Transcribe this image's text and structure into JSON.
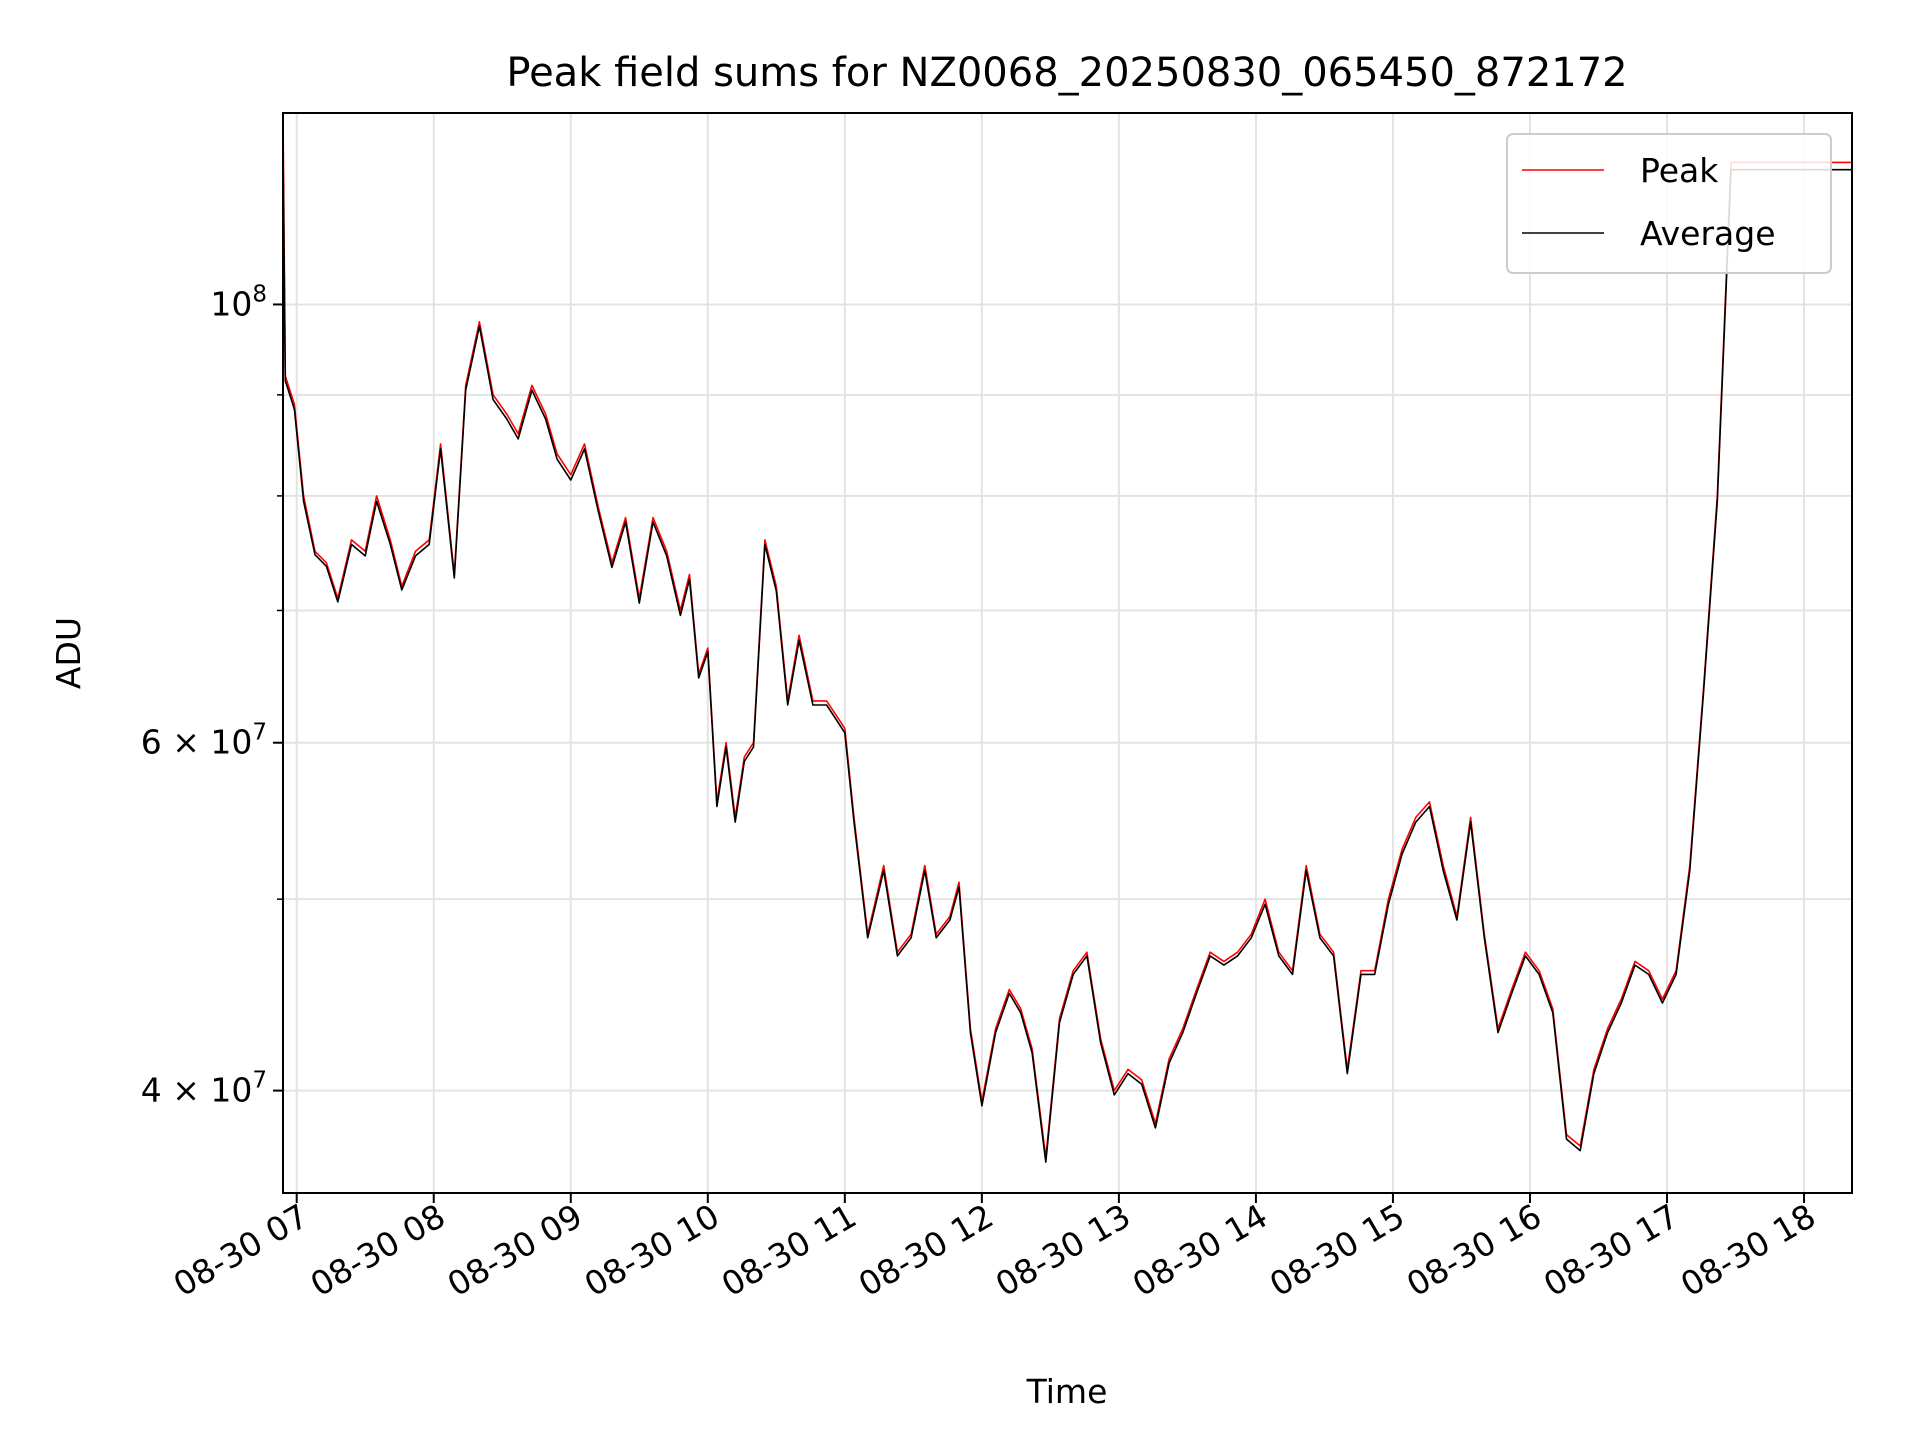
{
  "chart_data": {
    "type": "line",
    "title": "Peak field sums for NZ0068_20250830_065450_872172",
    "xlabel": "Time",
    "ylabel": "ADU",
    "yscale": "log",
    "xlim": [
      "2025-08-30 06:54",
      "2025-08-30 18:21"
    ],
    "ylim": [
      35500000,
      125000000
    ],
    "x_ticks": [
      "08-30 07",
      "08-30 08",
      "08-30 09",
      "08-30 10",
      "08-30 11",
      "08-30 12",
      "08-30 13",
      "08-30 14",
      "08-30 15",
      "08-30 16",
      "08-30 17",
      "08-30 18"
    ],
    "y_tick_labels": [
      {
        "value": 100000000,
        "mantissa": "10",
        "exponent": "8"
      },
      {
        "value": 60000000,
        "mantissa": "6 × 10",
        "exponent": "7"
      },
      {
        "value": 40000000,
        "mantissa": "4 × 10",
        "exponent": "7"
      }
    ],
    "y_minor_ticks": [
      50000000,
      70000000,
      80000000,
      90000000
    ],
    "grid": true,
    "legend_position": "upper right",
    "series": [
      {
        "name": "Peak",
        "color": "#ff0000",
        "x": [
          "2025-08-30 06:54",
          "2025-08-30 06:55",
          "2025-08-30 06:59",
          "2025-08-30 07:03",
          "2025-08-30 07:08",
          "2025-08-30 07:13",
          "2025-08-30 07:18",
          "2025-08-30 07:24",
          "2025-08-30 07:30",
          "2025-08-30 07:35",
          "2025-08-30 07:41",
          "2025-08-30 07:46",
          "2025-08-30 07:52",
          "2025-08-30 07:58",
          "2025-08-30 08:03",
          "2025-08-30 08:09",
          "2025-08-30 08:14",
          "2025-08-30 08:20",
          "2025-08-30 08:26",
          "2025-08-30 08:32",
          "2025-08-30 08:37",
          "2025-08-30 08:43",
          "2025-08-30 08:49",
          "2025-08-30 08:54",
          "2025-08-30 09:00",
          "2025-08-30 09:06",
          "2025-08-30 09:12",
          "2025-08-30 09:18",
          "2025-08-30 09:24",
          "2025-08-30 09:30",
          "2025-08-30 09:36",
          "2025-08-30 09:42",
          "2025-08-30 09:48",
          "2025-08-30 09:52",
          "2025-08-30 09:56",
          "2025-08-30 10:00",
          "2025-08-30 10:04",
          "2025-08-30 10:08",
          "2025-08-30 10:12",
          "2025-08-30 10:16",
          "2025-08-30 10:20",
          "2025-08-30 10:25",
          "2025-08-30 10:30",
          "2025-08-30 10:35",
          "2025-08-30 10:40",
          "2025-08-30 10:46",
          "2025-08-30 10:52",
          "2025-08-30 10:56",
          "2025-08-30 11:00",
          "2025-08-30 11:04",
          "2025-08-30 11:10",
          "2025-08-30 11:17",
          "2025-08-30 11:23",
          "2025-08-30 11:29",
          "2025-08-30 11:35",
          "2025-08-30 11:40",
          "2025-08-30 11:46",
          "2025-08-30 11:50",
          "2025-08-30 11:55",
          "2025-08-30 12:00",
          "2025-08-30 12:06",
          "2025-08-30 12:12",
          "2025-08-30 12:17",
          "2025-08-30 12:22",
          "2025-08-30 12:28",
          "2025-08-30 12:34",
          "2025-08-30 12:40",
          "2025-08-30 12:46",
          "2025-08-30 12:52",
          "2025-08-30 12:58",
          "2025-08-30 13:04",
          "2025-08-30 13:10",
          "2025-08-30 13:16",
          "2025-08-30 13:22",
          "2025-08-30 13:28",
          "2025-08-30 13:34",
          "2025-08-30 13:40",
          "2025-08-30 13:46",
          "2025-08-30 13:52",
          "2025-08-30 13:58",
          "2025-08-30 14:04",
          "2025-08-30 14:10",
          "2025-08-30 14:16",
          "2025-08-30 14:22",
          "2025-08-30 14:28",
          "2025-08-30 14:34",
          "2025-08-30 14:40",
          "2025-08-30 14:46",
          "2025-08-30 14:52",
          "2025-08-30 14:58",
          "2025-08-30 15:04",
          "2025-08-30 15:10",
          "2025-08-30 15:16",
          "2025-08-30 15:22",
          "2025-08-30 15:28",
          "2025-08-30 15:34",
          "2025-08-30 15:40",
          "2025-08-30 15:46",
          "2025-08-30 15:52",
          "2025-08-30 15:58",
          "2025-08-30 16:04",
          "2025-08-30 16:10",
          "2025-08-30 16:16",
          "2025-08-30 16:22",
          "2025-08-30 16:28",
          "2025-08-30 16:34",
          "2025-08-30 16:40",
          "2025-08-30 16:46",
          "2025-08-30 16:52",
          "2025-08-30 16:58",
          "2025-08-30 17:04",
          "2025-08-30 17:10",
          "2025-08-30 17:16",
          "2025-08-30 17:22",
          "2025-08-30 17:28",
          "2025-08-30 17:34",
          "2025-08-30 17:40",
          "2025-08-30 17:46",
          "2025-08-30 17:52",
          "2025-08-30 17:58",
          "2025-08-30 18:04",
          "2025-08-30 18:10",
          "2025-08-30 18:16",
          "2025-08-30 18:21"
        ],
        "values": [
          125000000,
          92000000,
          89000000,
          80000000,
          75000000,
          74000000,
          71000000,
          76000000,
          75000000,
          80000000,
          76000000,
          72000000,
          75000000,
          76000000,
          85000000,
          73000000,
          91000000,
          98000000,
          90000000,
          88000000,
          86000000,
          91000000,
          88000000,
          84000000,
          82000000,
          85000000,
          79000000,
          74000000,
          78000000,
          71000000,
          78000000,
          75000000,
          70000000,
          73000000,
          65000000,
          67000000,
          56000000,
          60000000,
          55000000,
          59000000,
          60000000,
          76000000,
          72000000,
          63000000,
          68000000,
          63000000,
          63000000,
          62000000,
          61000000,
          55000000,
          48000000,
          52000000,
          47000000,
          48000000,
          52000000,
          48000000,
          49000000,
          51000000,
          43000000,
          39500000,
          43000000,
          45000000,
          44000000,
          42000000,
          37000000,
          43500000,
          46000000,
          47000000,
          42500000,
          40000000,
          41000000,
          40500000,
          38500000,
          41500000,
          43000000,
          45000000,
          47000000,
          46500000,
          47000000,
          48000000,
          50000000,
          47000000,
          46000000,
          52000000,
          48000000,
          47000000,
          41000000,
          46000000,
          46000000,
          50000000,
          53000000,
          55000000,
          56000000,
          52000000,
          49000000,
          55000000,
          48000000,
          43000000,
          45000000,
          47000000,
          46000000,
          44000000,
          38000000,
          37500000,
          41000000,
          43000000,
          44500000,
          46500000,
          46000000,
          44500000,
          46000000,
          52000000,
          64000000,
          80000000,
          118000000,
          118000000,
          118000000,
          118000000,
          118000000,
          118000000,
          118000000,
          118000000,
          118000000,
          118000000
        ]
      },
      {
        "name": "Average",
        "color": "#000000",
        "x": [
          "2025-08-30 06:54",
          "2025-08-30 06:55",
          "2025-08-30 06:59",
          "2025-08-30 07:03",
          "2025-08-30 07:08",
          "2025-08-30 07:13",
          "2025-08-30 07:18",
          "2025-08-30 07:24",
          "2025-08-30 07:30",
          "2025-08-30 07:35",
          "2025-08-30 07:41",
          "2025-08-30 07:46",
          "2025-08-30 07:52",
          "2025-08-30 07:58",
          "2025-08-30 08:03",
          "2025-08-30 08:09",
          "2025-08-30 08:14",
          "2025-08-30 08:20",
          "2025-08-30 08:26",
          "2025-08-30 08:32",
          "2025-08-30 08:37",
          "2025-08-30 08:43",
          "2025-08-30 08:49",
          "2025-08-30 08:54",
          "2025-08-30 09:00",
          "2025-08-30 09:06",
          "2025-08-30 09:12",
          "2025-08-30 09:18",
          "2025-08-30 09:24",
          "2025-08-30 09:30",
          "2025-08-30 09:36",
          "2025-08-30 09:42",
          "2025-08-30 09:48",
          "2025-08-30 09:52",
          "2025-08-30 09:56",
          "2025-08-30 10:00",
          "2025-08-30 10:04",
          "2025-08-30 10:08",
          "2025-08-30 10:12",
          "2025-08-30 10:16",
          "2025-08-30 10:20",
          "2025-08-30 10:25",
          "2025-08-30 10:30",
          "2025-08-30 10:35",
          "2025-08-30 10:40",
          "2025-08-30 10:46",
          "2025-08-30 10:52",
          "2025-08-30 10:56",
          "2025-08-30 11:00",
          "2025-08-30 11:04",
          "2025-08-30 11:10",
          "2025-08-30 11:17",
          "2025-08-30 11:23",
          "2025-08-30 11:29",
          "2025-08-30 11:35",
          "2025-08-30 11:40",
          "2025-08-30 11:46",
          "2025-08-30 11:50",
          "2025-08-30 11:55",
          "2025-08-30 12:00",
          "2025-08-30 12:06",
          "2025-08-30 12:12",
          "2025-08-30 12:17",
          "2025-08-30 12:22",
          "2025-08-30 12:28",
          "2025-08-30 12:34",
          "2025-08-30 12:40",
          "2025-08-30 12:46",
          "2025-08-30 12:52",
          "2025-08-30 12:58",
          "2025-08-30 13:04",
          "2025-08-30 13:10",
          "2025-08-30 13:16",
          "2025-08-30 13:22",
          "2025-08-30 13:28",
          "2025-08-30 13:34",
          "2025-08-30 13:40",
          "2025-08-30 13:46",
          "2025-08-30 13:52",
          "2025-08-30 13:58",
          "2025-08-30 14:04",
          "2025-08-30 14:10",
          "2025-08-30 14:16",
          "2025-08-30 14:22",
          "2025-08-30 14:28",
          "2025-08-30 14:34",
          "2025-08-30 14:40",
          "2025-08-30 14:46",
          "2025-08-30 14:52",
          "2025-08-30 14:58",
          "2025-08-30 15:04",
          "2025-08-30 15:10",
          "2025-08-30 15:16",
          "2025-08-30 15:22",
          "2025-08-30 15:28",
          "2025-08-30 15:34",
          "2025-08-30 15:40",
          "2025-08-30 15:46",
          "2025-08-30 15:52",
          "2025-08-30 15:58",
          "2025-08-30 16:04",
          "2025-08-30 16:10",
          "2025-08-30 16:16",
          "2025-08-30 16:22",
          "2025-08-30 16:28",
          "2025-08-30 16:34",
          "2025-08-30 16:40",
          "2025-08-30 16:46",
          "2025-08-30 16:52",
          "2025-08-30 16:58",
          "2025-08-30 17:04",
          "2025-08-30 17:10",
          "2025-08-30 17:16",
          "2025-08-30 17:22",
          "2025-08-30 17:28",
          "2025-08-30 17:34",
          "2025-08-30 17:40",
          "2025-08-30 17:46",
          "2025-08-30 17:52",
          "2025-08-30 17:58",
          "2025-08-30 18:04",
          "2025-08-30 18:10",
          "2025-08-30 18:16",
          "2025-08-30 18:21"
        ],
        "values": [
          120000000,
          91500000,
          88500000,
          79500000,
          74700000,
          73700000,
          70700000,
          75600000,
          74600000,
          79500000,
          75600000,
          71700000,
          74600000,
          75600000,
          84500000,
          72700000,
          90500000,
          97500000,
          89500000,
          87500000,
          85500000,
          90500000,
          87500000,
          83500000,
          81500000,
          84500000,
          78600000,
          73600000,
          77600000,
          70600000,
          77600000,
          74600000,
          69600000,
          72600000,
          64700000,
          66700000,
          55700000,
          59700000,
          54700000,
          58700000,
          59700000,
          75600000,
          71600000,
          62700000,
          67600000,
          62700000,
          62700000,
          61700000,
          60700000,
          54700000,
          47800000,
          51700000,
          46800000,
          47800000,
          51700000,
          47800000,
          48800000,
          50700000,
          42800000,
          39300000,
          42800000,
          44800000,
          43800000,
          41800000,
          36800000,
          43300000,
          45800000,
          46800000,
          42300000,
          39800000,
          40800000,
          40300000,
          38300000,
          41300000,
          42800000,
          44800000,
          46800000,
          46300000,
          46800000,
          47800000,
          49700000,
          46800000,
          45800000,
          51700000,
          47800000,
          46800000,
          40800000,
          45800000,
          45800000,
          49700000,
          52700000,
          54700000,
          55700000,
          51700000,
          48800000,
          54700000,
          47800000,
          42800000,
          44800000,
          46800000,
          45800000,
          43800000,
          37800000,
          37300000,
          40800000,
          42800000,
          44300000,
          46300000,
          45800000,
          44300000,
          45800000,
          51700000,
          63700000,
          79500000,
          117000000,
          117000000,
          117000000,
          117000000,
          117000000,
          117000000,
          117000000,
          117000000,
          117000000,
          117000000
        ]
      }
    ]
  }
}
